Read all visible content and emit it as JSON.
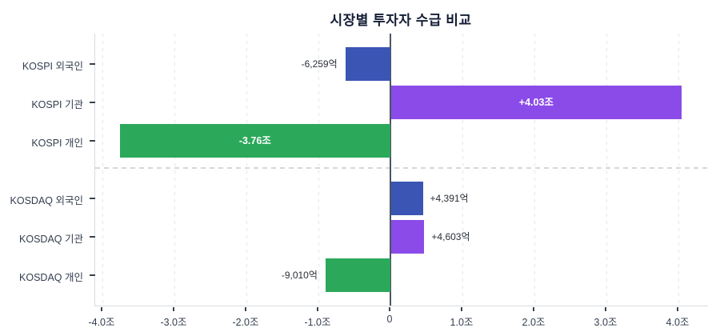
{
  "title": "시장별 투자자 수급 비교",
  "chart_data": {
    "type": "bar",
    "orientation": "horizontal",
    "title": "시장별 투자자 수급 비교",
    "categories": [
      "KOSPI 외국인",
      "KOSPI 기관",
      "KOSPI 개인",
      "KOSDAQ 외국인",
      "KOSDAQ 기관",
      "KOSDAQ 개인"
    ],
    "category_slugs": [
      "kospi-foreign",
      "kospi-institution",
      "kospi-individual",
      "kosdaq-foreign",
      "kosdaq-institution",
      "kosdaq-individual"
    ],
    "values_cho": [
      -0.6259,
      4.03,
      -3.76,
      0.4391,
      0.4603,
      -0.901
    ],
    "value_labels": [
      "-6,259억",
      "+4.03조",
      "-3.76조",
      "+4,391억",
      "+4,603억",
      "-9,010억"
    ],
    "label_placement": [
      "outside",
      "inside",
      "inside",
      "outside",
      "outside",
      "outside"
    ],
    "bar_colors": [
      "#3a55b4",
      "#8b4be8",
      "#2ca85a",
      "#3a55b4",
      "#8b4be8",
      "#2ca85a"
    ],
    "x_ticks": [
      {
        "value": -4,
        "label": "-4.0조"
      },
      {
        "value": -3,
        "label": "-3.0조"
      },
      {
        "value": -2,
        "label": "-2.0조"
      },
      {
        "value": -1,
        "label": "-1.0조"
      },
      {
        "value": 0,
        "label": "0"
      },
      {
        "value": 1,
        "label": "1.0조"
      },
      {
        "value": 2,
        "label": "2.0조"
      },
      {
        "value": 3,
        "label": "3.0조"
      },
      {
        "value": 4,
        "label": "4.0조"
      }
    ],
    "xlim": [
      -4.1,
      4.4
    ],
    "grid": "vertical-dashed",
    "legend": "none",
    "zero_line": true,
    "group_separator_after_index": 2,
    "groups": [
      "KOSPI",
      "KOSDAQ"
    ]
  },
  "colors": {
    "foreign_blue": "#3a55b4",
    "institution_purple": "#8b4be8",
    "individual_green": "#2ca85a",
    "zero_line": "#4a5562",
    "grid": "#e3e6ea",
    "title_text": "#141d35",
    "axis_text": "#333e4f"
  }
}
